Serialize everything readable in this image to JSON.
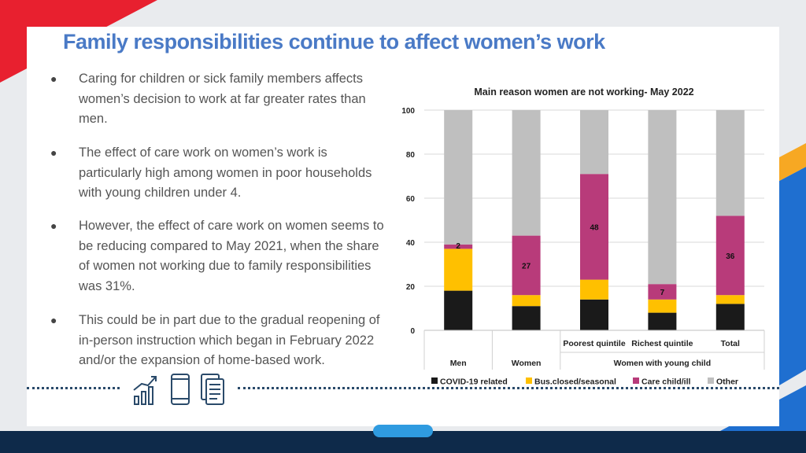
{
  "slide": {
    "title": "Family responsibilities continue to affect women’s work",
    "bullets": [
      "Caring for children or sick family members affects women’s decision to work at far greater rates than men.",
      "The effect of care work on women’s work is particularly high among women in poor households with young children under 4.",
      "However, the effect of care work on women seems to be reducing compared to May 2021, when the share of women not working due to family responsibilities was 31%.",
      "This could be in part due to the gradual reopening of in-person instruction which began in February 2022 and/or the expansion of home-based work."
    ],
    "icons": [
      "growth-chart-icon",
      "phone-icon",
      "documents-icon"
    ]
  },
  "colors": {
    "title": "#4a7ac6",
    "covid": "#1a1a1a",
    "bus": "#ffc000",
    "care": "#b83b7a",
    "other": "#bfbfbf",
    "accent_red": "#e8202f",
    "accent_blue": "#1f6fd0"
  },
  "chart_data": {
    "type": "bar",
    "stacked": true,
    "title": "Main  reason women are not working- May 2022",
    "categories": [
      "Men",
      "Women",
      "Poorest quintile",
      "Richest quintile",
      "Total"
    ],
    "group_labels": [
      {
        "label": "Men",
        "span": [
          "Men"
        ]
      },
      {
        "label": "Women",
        "span": [
          "Women"
        ]
      },
      {
        "label": "Women with young child",
        "span": [
          "Poorest quintile",
          "Richest quintile",
          "Total"
        ]
      }
    ],
    "ylim": [
      0,
      100
    ],
    "yticks": [
      0,
      20,
      40,
      60,
      80,
      100
    ],
    "legend_position": "bottom",
    "series": [
      {
        "name": "COVID-19 related",
        "color": "#1a1a1a",
        "values": [
          18,
          11,
          14,
          8,
          12
        ]
      },
      {
        "name": "Bus.closed/seasonal",
        "color": "#ffc000",
        "values": [
          19,
          5,
          9,
          6,
          4
        ]
      },
      {
        "name": "Care child/ill",
        "color": "#b83b7a",
        "values": [
          2,
          27,
          48,
          7,
          36
        ],
        "labels": [
          "2",
          "27",
          "48",
          "7",
          "36"
        ]
      },
      {
        "name": "Other",
        "color": "#bfbfbf",
        "values": [
          61,
          57,
          29,
          79,
          48
        ]
      }
    ]
  }
}
